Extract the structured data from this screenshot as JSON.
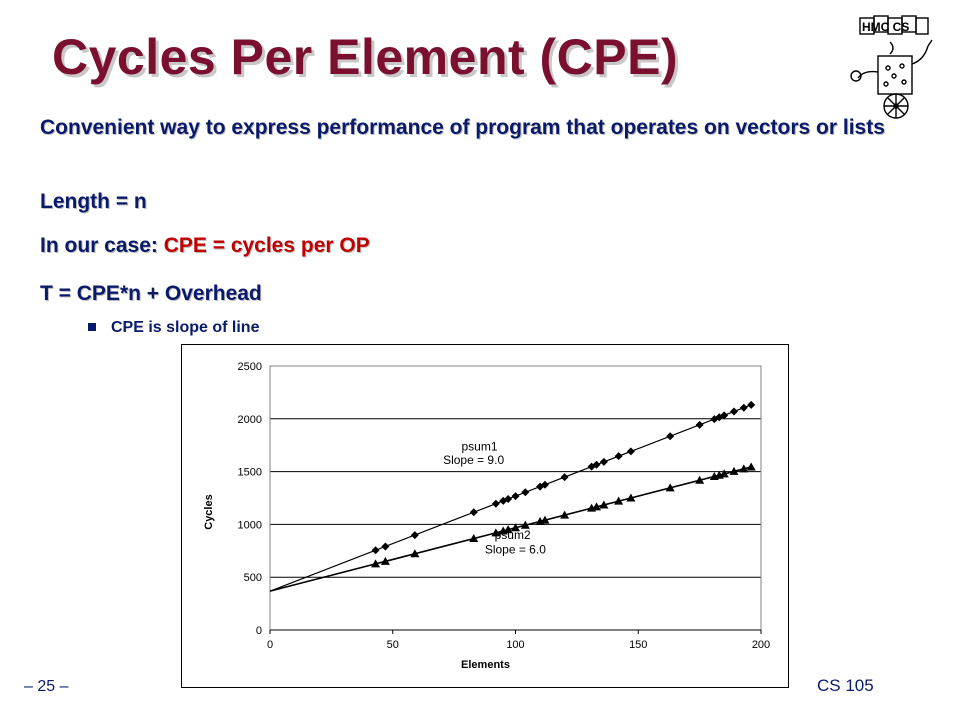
{
  "slide": {
    "title": "Cycles Per Element (CPE)",
    "bullets": {
      "b1": "Convenient way to express performance of program that operates on vectors or lists",
      "b2": "Length = n",
      "b3_prefix": "In our case: ",
      "b3_highlight": "CPE = cycles per OP",
      "b4": "T = CPE*n + Overhead",
      "sub1": "CPE is slope of line"
    },
    "footer_left": "– 25 –",
    "footer_right": "CS 105",
    "logo_text": "HMC CS",
    "colors": {
      "title": "#7a0f2f",
      "text": "#0a1a6b",
      "highlight": "#c00000"
    }
  },
  "chart_data": {
    "type": "scatter",
    "xlabel": "Elements",
    "ylabel": "Cycles",
    "xlim": [
      0,
      200
    ],
    "ylim": [
      0,
      2500
    ],
    "xticks": [
      "0",
      "50",
      "100",
      "150",
      "200"
    ],
    "yticks": [
      "0",
      "500",
      "1000",
      "1500",
      "2000",
      "2500"
    ],
    "grid": "horizontal",
    "series": [
      {
        "name": "psum1",
        "annotation": "Slope = 9.0",
        "marker": "diamond",
        "intercept": 368,
        "slope": 9.0,
        "x": [
          43,
          47,
          59,
          83,
          92,
          95,
          97,
          100,
          104,
          110,
          112,
          120,
          131,
          133,
          136,
          142,
          147,
          163,
          175,
          181,
          183,
          185,
          189,
          193,
          196
        ],
        "y": [
          755,
          791,
          899,
          1115,
          1196,
          1223,
          1241,
          1268,
          1304,
          1358,
          1376,
          1448,
          1547,
          1565,
          1592,
          1646,
          1691,
          1835,
          1943,
          1997,
          2015,
          2033,
          2069,
          2105,
          2132
        ]
      },
      {
        "name": "psum2",
        "annotation": "Slope = 6.0",
        "marker": "triangle",
        "intercept": 368,
        "slope": 6.0,
        "x": [
          43,
          47,
          59,
          83,
          92,
          95,
          97,
          100,
          104,
          110,
          112,
          120,
          131,
          133,
          136,
          142,
          147,
          163,
          175,
          181,
          183,
          185,
          189,
          193,
          196
        ],
        "y": [
          626,
          650,
          722,
          866,
          920,
          938,
          950,
          968,
          992,
          1028,
          1040,
          1088,
          1154,
          1166,
          1184,
          1220,
          1250,
          1346,
          1418,
          1454,
          1466,
          1478,
          1502,
          1526,
          1544
        ]
      }
    ]
  }
}
